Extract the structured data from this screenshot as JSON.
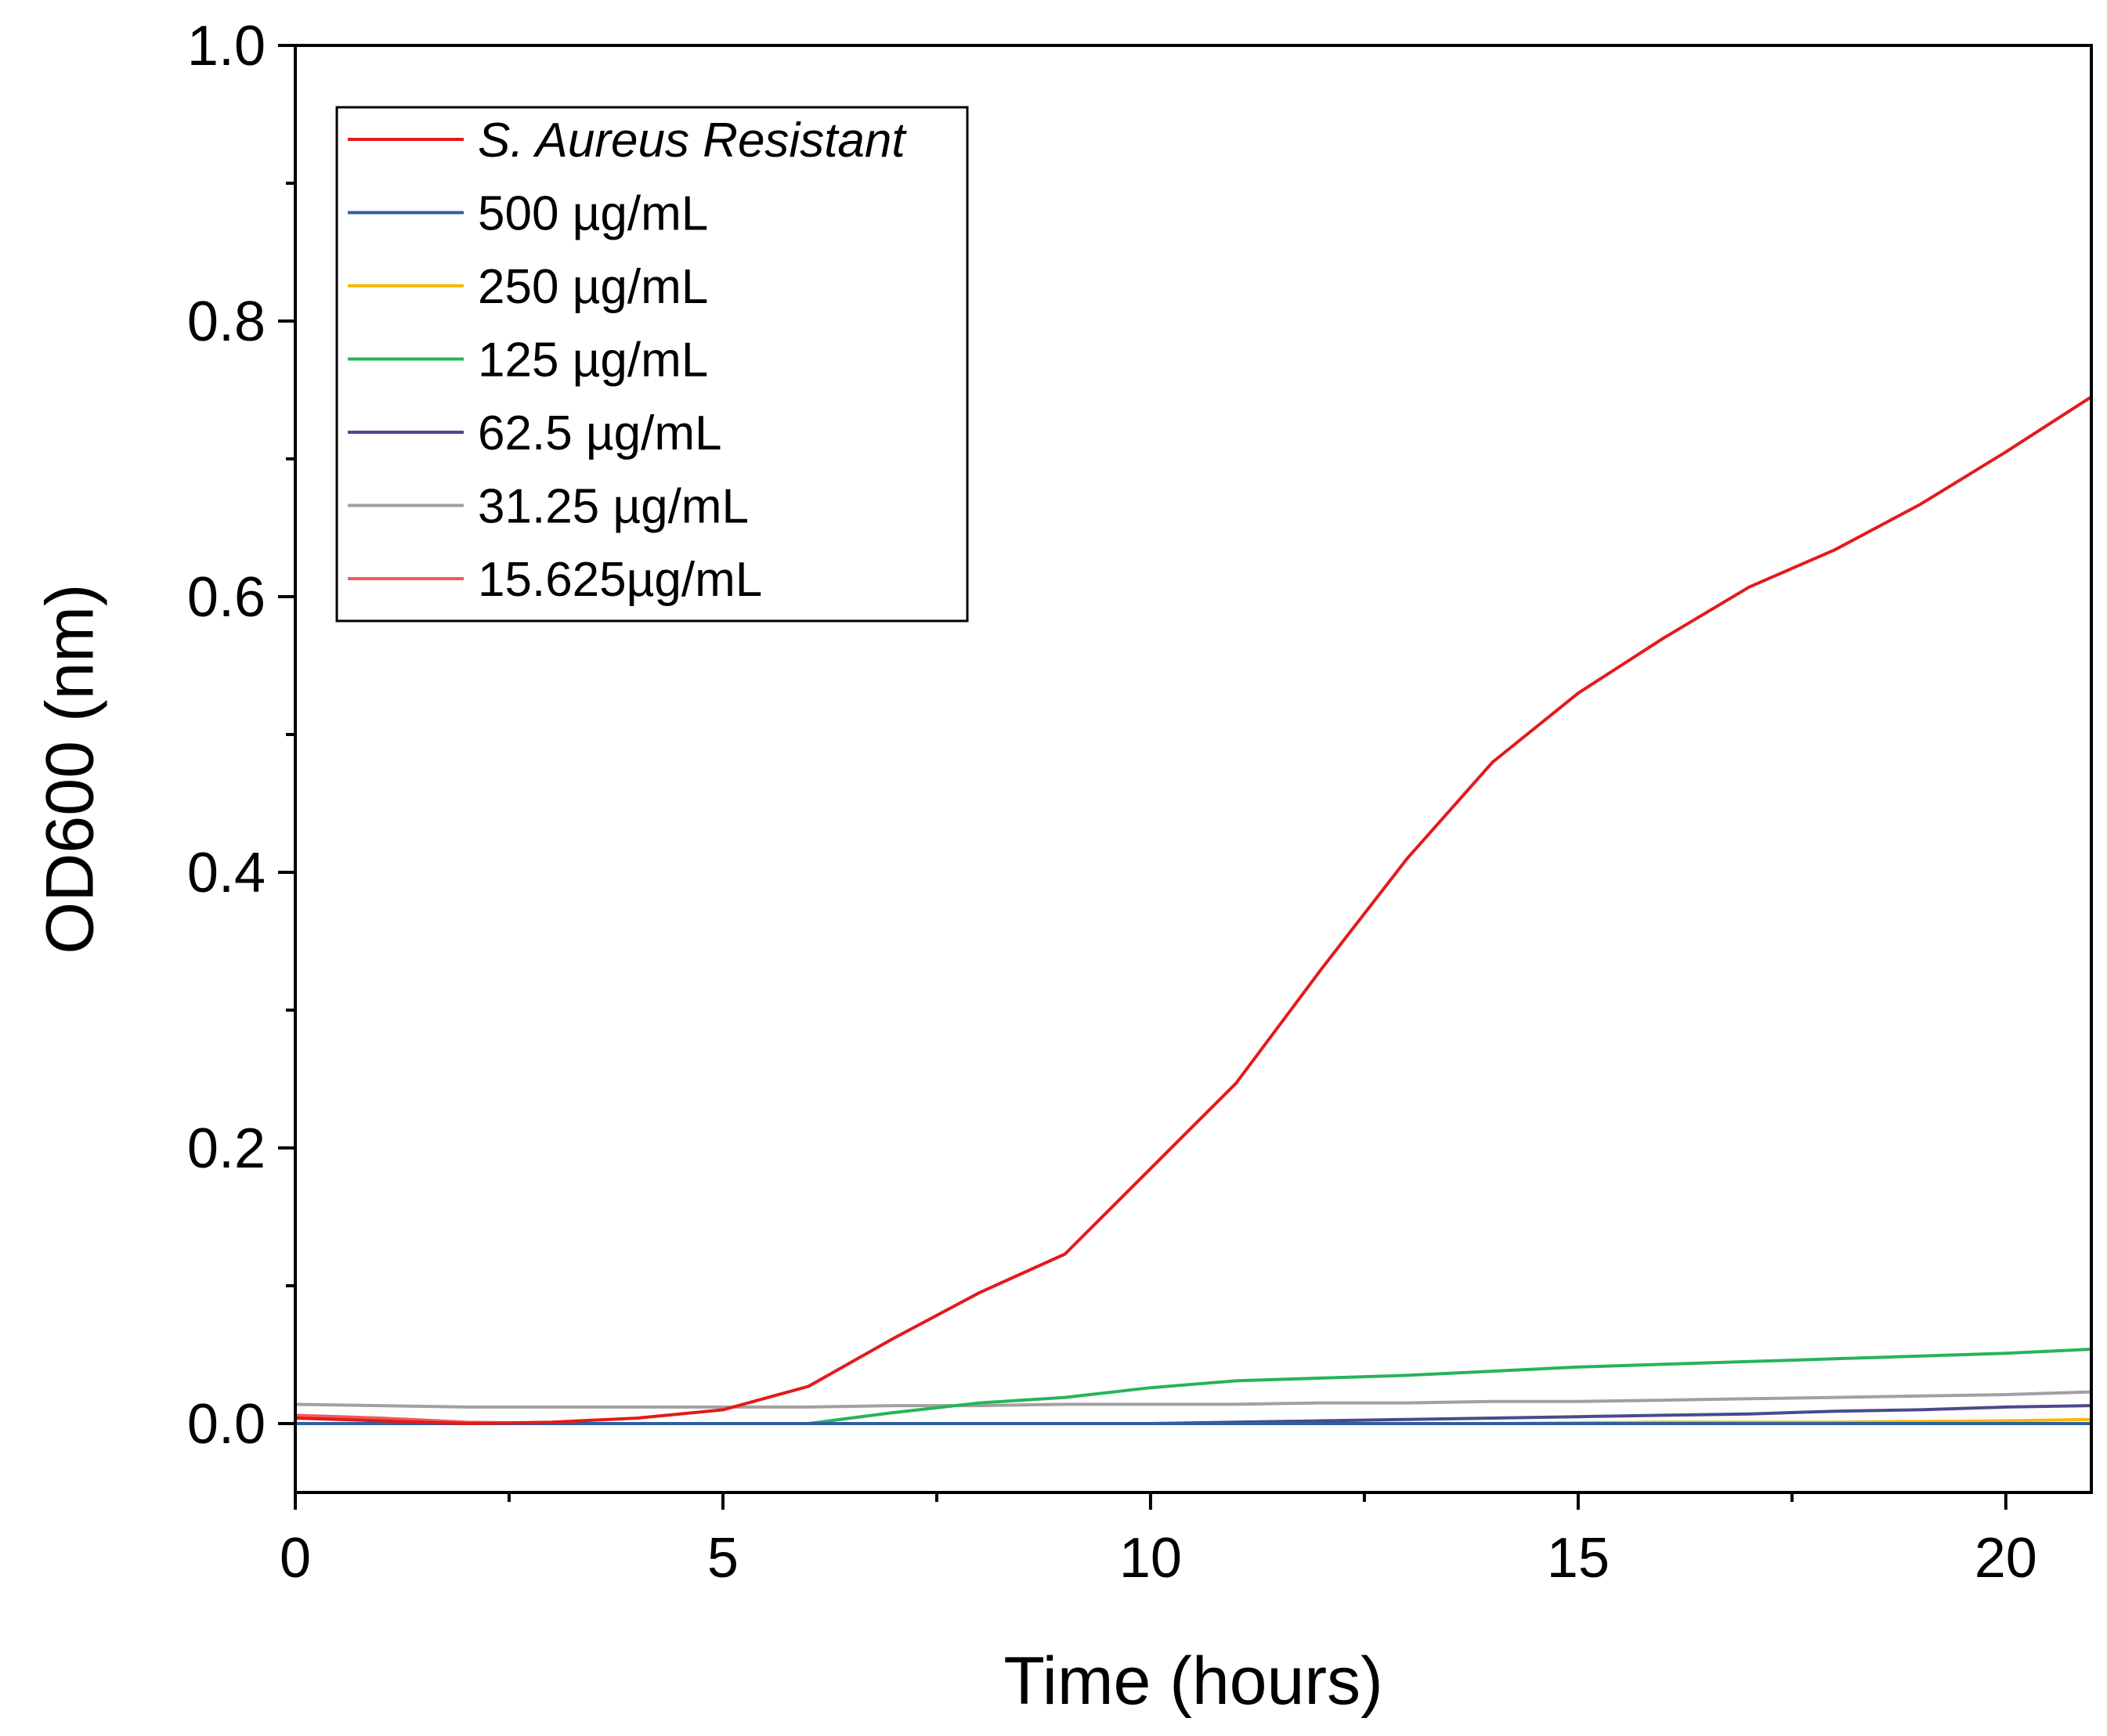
{
  "chart_data": {
    "type": "line",
    "title": "",
    "xlabel": "Time (hours)",
    "ylabel": "OD600 (nm)",
    "xlim": [
      0,
      21
    ],
    "ylim": [
      -0.05,
      1.0
    ],
    "xticks": [
      0,
      5,
      10,
      15,
      20
    ],
    "xtick_labels": [
      "0",
      "5",
      "10",
      "15",
      "20"
    ],
    "yticks": [
      0.0,
      0.2,
      0.4,
      0.6,
      0.8,
      1.0
    ],
    "ytick_labels": [
      "0.0",
      "0.2",
      "0.4",
      "0.6",
      "0.8",
      "1.0"
    ],
    "x_minor_step": 2.5,
    "y_minor_step": 0.1,
    "grid": false,
    "legend_position": "top-left",
    "series": [
      {
        "name": "S. Aureus Resistant",
        "italic": true,
        "color": "#e31a1c",
        "x": [
          0,
          1,
          2,
          3,
          4,
          5,
          6,
          7,
          8,
          9,
          10,
          11,
          12,
          13,
          14,
          15,
          16,
          17,
          18,
          19,
          20,
          21
        ],
        "y": [
          0.004,
          0.002,
          0.0,
          0.001,
          0.004,
          0.01,
          0.027,
          0.062,
          0.095,
          0.123,
          0.185,
          0.247,
          0.33,
          0.41,
          0.48,
          0.53,
          0.57,
          0.607,
          0.634,
          0.667,
          0.705,
          0.745
        ]
      },
      {
        "name": "500 µg/mL",
        "italic": false,
        "color": "#2f5f9e",
        "x": [
          0,
          5,
          10,
          15,
          20,
          21
        ],
        "y": [
          0.0,
          0.0,
          0.0,
          0.0,
          0.0,
          0.0
        ]
      },
      {
        "name": "250 µg/mL",
        "italic": false,
        "color": "#f6b800",
        "x": [
          0,
          5,
          10,
          14,
          16,
          18,
          20,
          21
        ],
        "y": [
          0.0,
          0.0,
          0.0,
          0.0,
          0.001,
          0.001,
          0.002,
          0.003
        ]
      },
      {
        "name": "125 µg/mL",
        "italic": false,
        "color": "#27b45a",
        "x": [
          0,
          5,
          6,
          7,
          8,
          9,
          10,
          11,
          12,
          13,
          14,
          15,
          16,
          17,
          18,
          19,
          20,
          21
        ],
        "y": [
          0.0,
          0.0,
          0.0,
          0.008,
          0.015,
          0.019,
          0.026,
          0.031,
          0.033,
          0.035,
          0.038,
          0.041,
          0.043,
          0.045,
          0.047,
          0.049,
          0.051,
          0.054
        ]
      },
      {
        "name": "62.5 µg/mL",
        "italic": false,
        "color": "#4a4a8c",
        "x": [
          0,
          5,
          10,
          11,
          12,
          13,
          14,
          15,
          16,
          17,
          18,
          19,
          20,
          21
        ],
        "y": [
          0.0,
          0.0,
          0.0,
          0.001,
          0.002,
          0.003,
          0.004,
          0.005,
          0.006,
          0.007,
          0.009,
          0.01,
          0.012,
          0.013
        ]
      },
      {
        "name": "31.25 µg/mL",
        "italic": false,
        "color": "#a0a0a0",
        "x": [
          0,
          1,
          2,
          3,
          4,
          5,
          6,
          7,
          8,
          9,
          10,
          11,
          12,
          13,
          14,
          15,
          16,
          17,
          18,
          19,
          20,
          21
        ],
        "y": [
          0.014,
          0.013,
          0.012,
          0.012,
          0.012,
          0.012,
          0.012,
          0.013,
          0.013,
          0.014,
          0.014,
          0.014,
          0.015,
          0.015,
          0.016,
          0.016,
          0.017,
          0.018,
          0.019,
          0.02,
          0.021,
          0.023
        ]
      },
      {
        "name": "15.625µg/mL",
        "italic": false,
        "color": "#f25a5a",
        "x": [
          0,
          1,
          2,
          3,
          5,
          10,
          15,
          20,
          21
        ],
        "y": [
          0.006,
          0.004,
          0.001,
          0.0,
          0.0,
          0.0,
          0.0,
          0.0,
          0.0
        ]
      }
    ]
  }
}
